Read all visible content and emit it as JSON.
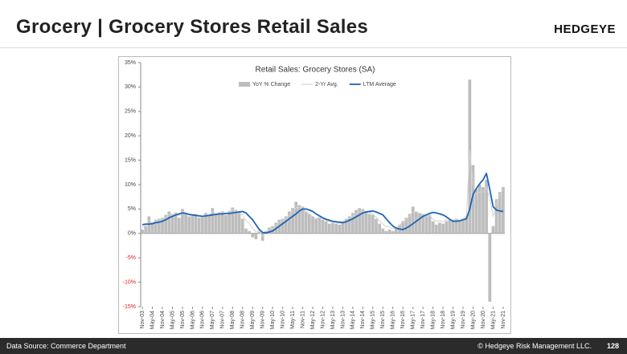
{
  "header": {
    "title": "Grocery | Grocery Stores Retail Sales",
    "logo": "HEDGEYE"
  },
  "chart_data": {
    "type": "bar",
    "title": "Retail Sales: Grocery Stores (SA)",
    "categories": [
      "Nov-03",
      null,
      null,
      "May-04",
      null,
      null,
      "Nov-04",
      null,
      null,
      "May-05",
      null,
      null,
      "Nov-05",
      null,
      null,
      "May-06",
      null,
      null,
      "Nov-06",
      null,
      null,
      "May-07",
      null,
      null,
      "Nov-07",
      null,
      null,
      "May-08",
      null,
      null,
      "Nov-08",
      null,
      null,
      "May-09",
      null,
      null,
      "Nov-09",
      null,
      null,
      "May-10",
      null,
      null,
      "Nov-10",
      null,
      null,
      "May-11",
      null,
      null,
      "Nov-11",
      null,
      null,
      "May-12",
      null,
      null,
      "Nov-12",
      null,
      null,
      "May-13",
      null,
      null,
      "Nov-13",
      null,
      null,
      "May-14",
      null,
      null,
      "Nov-14",
      null,
      null,
      "May-15",
      null,
      null,
      "Nov-15",
      null,
      null,
      "May-16",
      null,
      null,
      "Nov-16",
      null,
      null,
      "May-17",
      null,
      null,
      "Nov-17",
      null,
      null,
      "May-18",
      null,
      null,
      "Nov-18",
      null,
      null,
      "May-19",
      null,
      null,
      "Nov-19",
      null,
      null,
      "May-20",
      null,
      null,
      "Nov-20",
      null,
      null,
      "May-21",
      null,
      null,
      "Nov-21"
    ],
    "series": [
      {
        "name": "YoY % Change",
        "type": "bar",
        "color": "#bdbdbd",
        "values": [
          0.8,
          1.5,
          3.5,
          2.2,
          2.8,
          3.0,
          3.2,
          3.8,
          4.5,
          4.0,
          4.3,
          3.2,
          5.0,
          4.2,
          3.5,
          3.8,
          4.0,
          3.2,
          3.3,
          4.2,
          3.6,
          5.2,
          4.0,
          4.3,
          4.5,
          3.8,
          4.6,
          5.3,
          4.8,
          4.2,
          3.0,
          1.0,
          0.5,
          -0.8,
          -1.2,
          0.3,
          -1.5,
          0.5,
          1.2,
          1.5,
          2.2,
          2.8,
          3.0,
          3.5,
          4.5,
          5.2,
          6.5,
          5.8,
          5.5,
          4.5,
          4.0,
          3.5,
          3.0,
          3.2,
          2.8,
          2.5,
          2.0,
          2.2,
          2.0,
          1.8,
          2.5,
          3.0,
          3.5,
          4.2,
          4.8,
          5.2,
          5.0,
          4.5,
          4.0,
          3.8,
          3.0,
          2.0,
          1.0,
          0.5,
          0.8,
          0.5,
          1.0,
          1.8,
          2.5,
          3.2,
          4.0,
          5.5,
          4.5,
          4.2,
          4.0,
          3.5,
          3.8,
          2.5,
          1.8,
          2.2,
          2.0,
          2.5,
          2.8,
          2.8,
          3.0,
          2.5,
          3.0,
          3.5,
          31.5,
          14.0,
          9.0,
          10.0,
          9.5,
          11.0,
          -14.0,
          1.5,
          7.0,
          8.5,
          9.5
        ]
      },
      {
        "name": "2-Yr Avg.",
        "type": "line",
        "color": "#d3d3d3",
        "values": [
          1.2,
          1.7,
          2.7,
          2.1,
          2.5,
          2.7,
          2.9,
          3.3,
          3.9,
          3.8,
          4.1,
          3.6,
          4.6,
          4.2,
          3.7,
          3.8,
          3.9,
          3.4,
          3.4,
          3.9,
          3.7,
          4.5,
          4.0,
          4.2,
          4.3,
          4.0,
          4.4,
          4.8,
          4.6,
          4.3,
          3.8,
          2.6,
          2.1,
          1.0,
          0.3,
          0.6,
          -0.7,
          0.3,
          0.8,
          1.0,
          1.6,
          2.2,
          2.5,
          3.0,
          3.8,
          4.4,
          5.3,
          5.3,
          5.3,
          4.5,
          4.0,
          3.5,
          3.0,
          3.4,
          3.0,
          2.7,
          2.4,
          2.4,
          2.2,
          2.1,
          2.4,
          2.7,
          3.1,
          3.6,
          4.1,
          4.5,
          4.6,
          4.5,
          4.3,
          4.0,
          3.3,
          2.6,
          1.9,
          1.4,
          1.3,
          1.0,
          1.1,
          1.7,
          2.3,
          2.9,
          3.5,
          4.5,
          4.4,
          4.1,
          3.9,
          3.6,
          3.7,
          2.9,
          2.5,
          2.6,
          2.4,
          2.8,
          2.7,
          2.7,
          2.9,
          2.6,
          2.9,
          3.3,
          17.0,
          10.0,
          8.0,
          8.5,
          8.5,
          9.5,
          7.0,
          3.5,
          6.0,
          8.0,
          9.0
        ]
      },
      {
        "name": "LTM Average",
        "type": "line",
        "color": "#1f64b4",
        "values": [
          1.8,
          1.9,
          1.9,
          2.0,
          2.2,
          2.3,
          2.5,
          2.8,
          3.2,
          3.5,
          3.8,
          4.0,
          4.2,
          4.1,
          3.9,
          3.8,
          3.7,
          3.6,
          3.5,
          3.6,
          3.7,
          3.8,
          3.9,
          4.0,
          4.0,
          4.1,
          4.1,
          4.2,
          4.3,
          4.4,
          4.5,
          4.2,
          3.5,
          2.8,
          1.8,
          0.8,
          0.2,
          0.1,
          0.3,
          0.5,
          1.0,
          1.5,
          2.0,
          2.5,
          3.0,
          3.5,
          4.0,
          4.6,
          5.0,
          5.0,
          4.8,
          4.5,
          4.0,
          3.6,
          3.2,
          2.9,
          2.7,
          2.5,
          2.4,
          2.3,
          2.2,
          2.4,
          2.7,
          3.0,
          3.4,
          3.8,
          4.2,
          4.4,
          4.5,
          4.6,
          4.4,
          4.1,
          3.8,
          3.0,
          2.2,
          1.5,
          1.1,
          0.9,
          0.8,
          1.1,
          1.5,
          2.0,
          2.5,
          3.0,
          3.5,
          3.8,
          4.1,
          4.3,
          4.2,
          4.0,
          3.8,
          3.4,
          2.9,
          2.5,
          2.5,
          2.6,
          2.8,
          3.0,
          5.0,
          8.0,
          9.2,
          10.2,
          11.0,
          12.3,
          9.0,
          5.5,
          4.8,
          4.6,
          4.5
        ]
      }
    ],
    "ylim": [
      -15,
      35
    ],
    "yticks": [
      {
        "value": -15,
        "label": "-15%"
      },
      {
        "value": -10,
        "label": "-10%"
      },
      {
        "value": -5,
        "label": "-5%"
      },
      {
        "value": 0,
        "label": "0%"
      },
      {
        "value": 5,
        "label": "5%"
      },
      {
        "value": 10,
        "label": "10%"
      },
      {
        "value": 15,
        "label": "15%"
      },
      {
        "value": 20,
        "label": "20%"
      },
      {
        "value": 25,
        "label": "25%"
      },
      {
        "value": 30,
        "label": "30%"
      },
      {
        "value": 35,
        "label": "35%"
      }
    ],
    "negative_tick_color": "#e02020",
    "legend": "top"
  },
  "footer": {
    "source": "Data Source: Commerce Department",
    "copyright": "© Hedgeye Risk Management LLC.",
    "page": "128"
  }
}
